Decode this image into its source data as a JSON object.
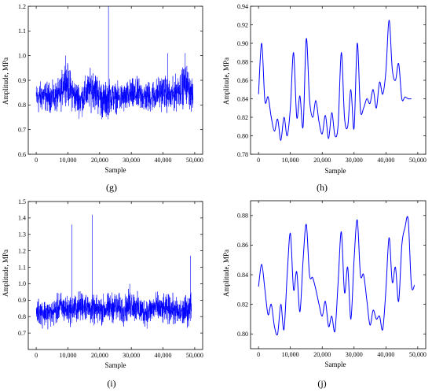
{
  "panels": [
    {
      "caption": "(g)",
      "ylabel": "Amplitude, MPa",
      "xlabel": "Sample"
    },
    {
      "caption": "(h)",
      "ylabel": "Amplitude, MPa",
      "xlabel": "Sample"
    },
    {
      "caption": "(i)",
      "ylabel": "Amplitude, MPa",
      "xlabel": "Sample"
    },
    {
      "caption": "(j)",
      "ylabel": "Amplitude, MPa",
      "xlabel": "Sample"
    }
  ],
  "chart_data": [
    {
      "type": "line",
      "panel": "(g)",
      "xlabel": "Sample",
      "ylabel": "Amplitude, MPa",
      "xlim": [
        -2500,
        52500
      ],
      "ylim": [
        0.6,
        1.2
      ],
      "xticks": [
        0,
        10000,
        20000,
        30000,
        40000,
        50000
      ],
      "xtick_labels": [
        "0",
        "10,000",
        "20,000",
        "30,000",
        "40,000",
        "50,000"
      ],
      "yticks": [
        0.6,
        0.7,
        0.8,
        0.9,
        1.0,
        1.1,
        1.2
      ],
      "ytick_labels": [
        "0.6",
        "0.7",
        "0.8",
        "0.9",
        "1.0",
        "1.1",
        "1.2"
      ],
      "color": "#0000ff",
      "grid": false,
      "x": [
        0,
        2500,
        5000,
        7500,
        9000,
        10000,
        12000,
        14000,
        16000,
        18000,
        20000,
        21500,
        23000,
        25000,
        27500,
        30000,
        32500,
        35000,
        37500,
        40000,
        42500,
        45000,
        47500,
        49500
      ],
      "y_mean": [
        0.83,
        0.84,
        0.83,
        0.84,
        0.9,
        0.88,
        0.84,
        0.82,
        0.85,
        0.88,
        0.84,
        0.82,
        0.84,
        0.83,
        0.83,
        0.84,
        0.84,
        0.83,
        0.84,
        0.86,
        0.83,
        0.87,
        0.89,
        0.83
      ],
      "y_min": [
        0.74,
        0.76,
        0.76,
        0.75,
        0.81,
        0.78,
        0.75,
        0.74,
        0.76,
        0.77,
        0.73,
        0.71,
        0.74,
        0.76,
        0.75,
        0.76,
        0.76,
        0.75,
        0.76,
        0.77,
        0.75,
        0.77,
        0.79,
        0.74
      ],
      "y_max": [
        0.9,
        0.91,
        0.9,
        0.92,
        1.0,
        0.98,
        0.92,
        0.9,
        0.94,
        0.97,
        0.92,
        0.9,
        0.92,
        0.9,
        0.9,
        0.92,
        0.92,
        0.91,
        0.92,
        0.94,
        0.91,
        0.95,
        0.98,
        0.9
      ],
      "spikes": [
        [
          22800,
          1.2
        ],
        [
          9300,
          1.0
        ],
        [
          41500,
          1.01
        ],
        [
          47000,
          1.01
        ]
      ]
    },
    {
      "type": "line",
      "panel": "(h)",
      "xlabel": "Sample",
      "ylabel": "Amplitude, MPa",
      "xlim": [
        -2500,
        52500
      ],
      "ylim": [
        0.78,
        0.94
      ],
      "xticks": [
        0,
        10000,
        20000,
        30000,
        40000,
        50000
      ],
      "xtick_labels": [
        "0",
        "10,000",
        "20,000",
        "30,000",
        "40,000",
        "50,000"
      ],
      "yticks": [
        0.78,
        0.8,
        0.82,
        0.84,
        0.86,
        0.88,
        0.9,
        0.92,
        0.94
      ],
      "ytick_labels": [
        "0.78",
        "0.80",
        "0.82",
        "0.84",
        "0.86",
        "0.88",
        "0.90",
        "0.92",
        "0.94"
      ],
      "color": "#0000ff",
      "grid": false,
      "x": [
        0,
        1000,
        2000,
        3000,
        4000,
        5000,
        6000,
        7000,
        8000,
        9000,
        10000,
        11000,
        12000,
        13000,
        14000,
        15000,
        16000,
        17000,
        18000,
        19000,
        20000,
        21000,
        22000,
        23000,
        24000,
        25000,
        26000,
        27000,
        28000,
        29000,
        30000,
        31000,
        32000,
        33000,
        34000,
        35000,
        36000,
        37000,
        38000,
        39000,
        40000,
        41000,
        42000,
        43000,
        44000,
        45000,
        46000,
        47000,
        48000
      ],
      "values": [
        0.845,
        0.9,
        0.838,
        0.842,
        0.82,
        0.805,
        0.818,
        0.795,
        0.82,
        0.8,
        0.83,
        0.89,
        0.82,
        0.843,
        0.81,
        0.905,
        0.84,
        0.82,
        0.838,
        0.815,
        0.802,
        0.822,
        0.797,
        0.825,
        0.8,
        0.812,
        0.89,
        0.82,
        0.81,
        0.85,
        0.808,
        0.9,
        0.828,
        0.83,
        0.84,
        0.835,
        0.85,
        0.83,
        0.858,
        0.845,
        0.87,
        0.925,
        0.872,
        0.86,
        0.878,
        0.84,
        0.842,
        0.84,
        0.84
      ]
    },
    {
      "type": "line",
      "panel": "(i)",
      "xlabel": "Sample",
      "ylabel": "Amplitude, MPa",
      "xlim": [
        -2500,
        52500
      ],
      "ylim": [
        0.6,
        1.5
      ],
      "xticks": [
        0,
        10000,
        20000,
        30000,
        40000,
        50000
      ],
      "xtick_labels": [
        "0",
        "10,000",
        "20,000",
        "30,000",
        "40,000",
        "50,000"
      ],
      "yticks": [
        0.7,
        0.8,
        0.9,
        1.0,
        1.1,
        1.2,
        1.3,
        1.4,
        1.5
      ],
      "ytick_labels": [
        "0.7",
        "0.8",
        "0.9",
        "1.0",
        "1.1",
        "1.2",
        "1.3",
        "1.4",
        "1.5"
      ],
      "color": "#0000ff",
      "grid": false,
      "x": [
        0,
        2500,
        5000,
        7500,
        10000,
        12500,
        15000,
        17500,
        20000,
        22500,
        25000,
        27500,
        30000,
        32500,
        35000,
        37500,
        40000,
        42500,
        45000,
        47500,
        49000
      ],
      "y_mean": [
        0.84,
        0.83,
        0.82,
        0.86,
        0.84,
        0.85,
        0.87,
        0.84,
        0.84,
        0.85,
        0.86,
        0.84,
        0.88,
        0.84,
        0.83,
        0.86,
        0.84,
        0.85,
        0.82,
        0.84,
        0.86
      ],
      "y_min": [
        0.74,
        0.72,
        0.72,
        0.75,
        0.73,
        0.74,
        0.76,
        0.73,
        0.73,
        0.74,
        0.75,
        0.73,
        0.76,
        0.73,
        0.72,
        0.75,
        0.73,
        0.74,
        0.71,
        0.72,
        0.74
      ],
      "y_max": [
        0.93,
        0.92,
        0.91,
        0.97,
        0.94,
        0.96,
        0.98,
        0.94,
        0.94,
        0.96,
        0.97,
        0.94,
        0.99,
        0.95,
        0.93,
        0.97,
        0.94,
        0.96,
        0.92,
        0.95,
        0.98
      ],
      "spikes": [
        [
          11200,
          1.36
        ],
        [
          17700,
          1.42
        ],
        [
          29500,
          1.0
        ],
        [
          48700,
          1.17
        ]
      ]
    },
    {
      "type": "line",
      "panel": "(j)",
      "xlabel": "Sample",
      "ylabel": "Amplitude, MPa",
      "xlim": [
        -2500,
        52500
      ],
      "ylim": [
        0.79,
        0.89
      ],
      "xticks": [
        0,
        10000,
        20000,
        30000,
        40000,
        50000
      ],
      "xtick_labels": [
        "0",
        "10,000",
        "20,000",
        "30,000",
        "40,000",
        "50,000"
      ],
      "yticks": [
        0.8,
        0.82,
        0.84,
        0.86,
        0.88
      ],
      "ytick_labels": [
        "0.80",
        "0.82",
        "0.84",
        "0.86",
        "0.88"
      ],
      "color": "#0000ff",
      "grid": false,
      "x": [
        0,
        1000,
        2000,
        3000,
        4000,
        5000,
        6000,
        7000,
        8000,
        9000,
        10000,
        11000,
        12000,
        13000,
        14000,
        15000,
        16000,
        17000,
        18000,
        19000,
        20000,
        21000,
        22000,
        23000,
        24000,
        25000,
        26000,
        27000,
        28000,
        29000,
        30000,
        31000,
        32000,
        33000,
        34000,
        35000,
        36000,
        37000,
        38000,
        39000,
        40000,
        41000,
        42000,
        43000,
        44000,
        45000,
        46000,
        47000,
        48000,
        49000
      ],
      "values": [
        0.832,
        0.847,
        0.83,
        0.813,
        0.82,
        0.805,
        0.8,
        0.82,
        0.803,
        0.84,
        0.868,
        0.83,
        0.842,
        0.815,
        0.85,
        0.874,
        0.84,
        0.838,
        0.83,
        0.82,
        0.812,
        0.822,
        0.805,
        0.812,
        0.802,
        0.835,
        0.869,
        0.828,
        0.845,
        0.81,
        0.85,
        0.877,
        0.84,
        0.84,
        0.823,
        0.806,
        0.816,
        0.81,
        0.812,
        0.803,
        0.83,
        0.865,
        0.835,
        0.845,
        0.822,
        0.86,
        0.872,
        0.877,
        0.833,
        0.833
      ]
    }
  ]
}
